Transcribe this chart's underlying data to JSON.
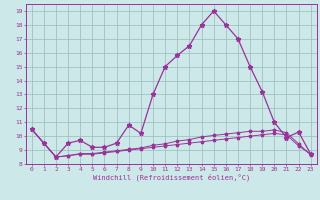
{
  "xlabel": "Windchill (Refroidissement éolien,°C)",
  "background_color": "#cce8e8",
  "line_color": "#993399",
  "grid_color": "#99bbbb",
  "text_color": "#993399",
  "xlim": [
    -0.5,
    23.5
  ],
  "ylim": [
    8,
    19.5
  ],
  "xticks": [
    0,
    1,
    2,
    3,
    4,
    5,
    6,
    7,
    8,
    9,
    10,
    11,
    12,
    13,
    14,
    15,
    16,
    17,
    18,
    19,
    20,
    21,
    22,
    23
  ],
  "yticks": [
    8,
    9,
    10,
    11,
    12,
    13,
    14,
    15,
    16,
    17,
    18,
    19
  ],
  "series_main": [
    10.5,
    9.5,
    8.5,
    9.5,
    9.7,
    9.2,
    9.2,
    9.5,
    10.8,
    10.2,
    13.0,
    15.0,
    15.8,
    16.5,
    18.0,
    19.0,
    18.0,
    17.0,
    15.0,
    13.2,
    11.0,
    9.9,
    10.3,
    8.7
  ],
  "series_flat1": [
    10.5,
    9.5,
    8.5,
    8.6,
    8.7,
    8.7,
    8.8,
    8.9,
    9.0,
    9.1,
    9.2,
    9.3,
    9.4,
    9.5,
    9.6,
    9.7,
    9.8,
    9.9,
    10.0,
    10.1,
    10.2,
    10.1,
    9.3,
    8.7
  ],
  "series_flat2": [
    10.5,
    9.5,
    8.5,
    8.6,
    8.75,
    8.75,
    8.85,
    8.95,
    9.05,
    9.15,
    9.35,
    9.45,
    9.65,
    9.75,
    9.95,
    10.05,
    10.15,
    10.25,
    10.35,
    10.35,
    10.45,
    10.25,
    9.45,
    8.65
  ]
}
